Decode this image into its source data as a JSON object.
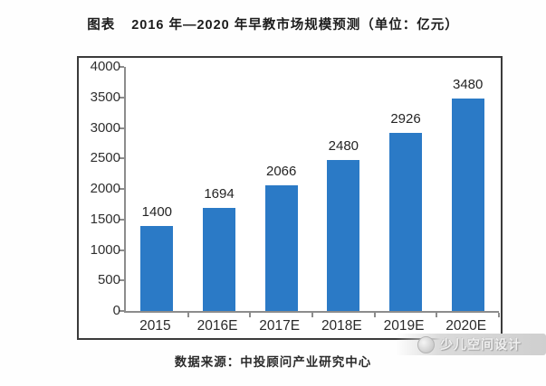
{
  "header": {
    "title_prefix": "图表",
    "title_main": "2016 年—2020 年早教市场规模预测（单位：亿元）"
  },
  "chart_data": {
    "type": "bar",
    "categories": [
      "2015",
      "2016E",
      "2017E",
      "2018E",
      "2019E",
      "2020E"
    ],
    "values": [
      1400,
      1694,
      2066,
      2480,
      2926,
      3480
    ],
    "title": "图表 2016 年—2020 年早教市场规模预测（单位：亿元）",
    "xlabel": "",
    "ylabel": "",
    "ylim": [
      0,
      4000
    ],
    "yticks": [
      0,
      500,
      1000,
      1500,
      2000,
      2500,
      3000,
      3500,
      4000
    ],
    "grid": false,
    "legend": "none",
    "bar_color": "#2b7ac6"
  },
  "footer": {
    "source": "数据来源：中投顾问产业研究中心",
    "watermark": "少儿空间设计"
  },
  "colors": {
    "bar": "#2b7ac6",
    "axis": "#8c8c8c",
    "border": "#3b3b3b",
    "text": "#2a2a2a"
  }
}
